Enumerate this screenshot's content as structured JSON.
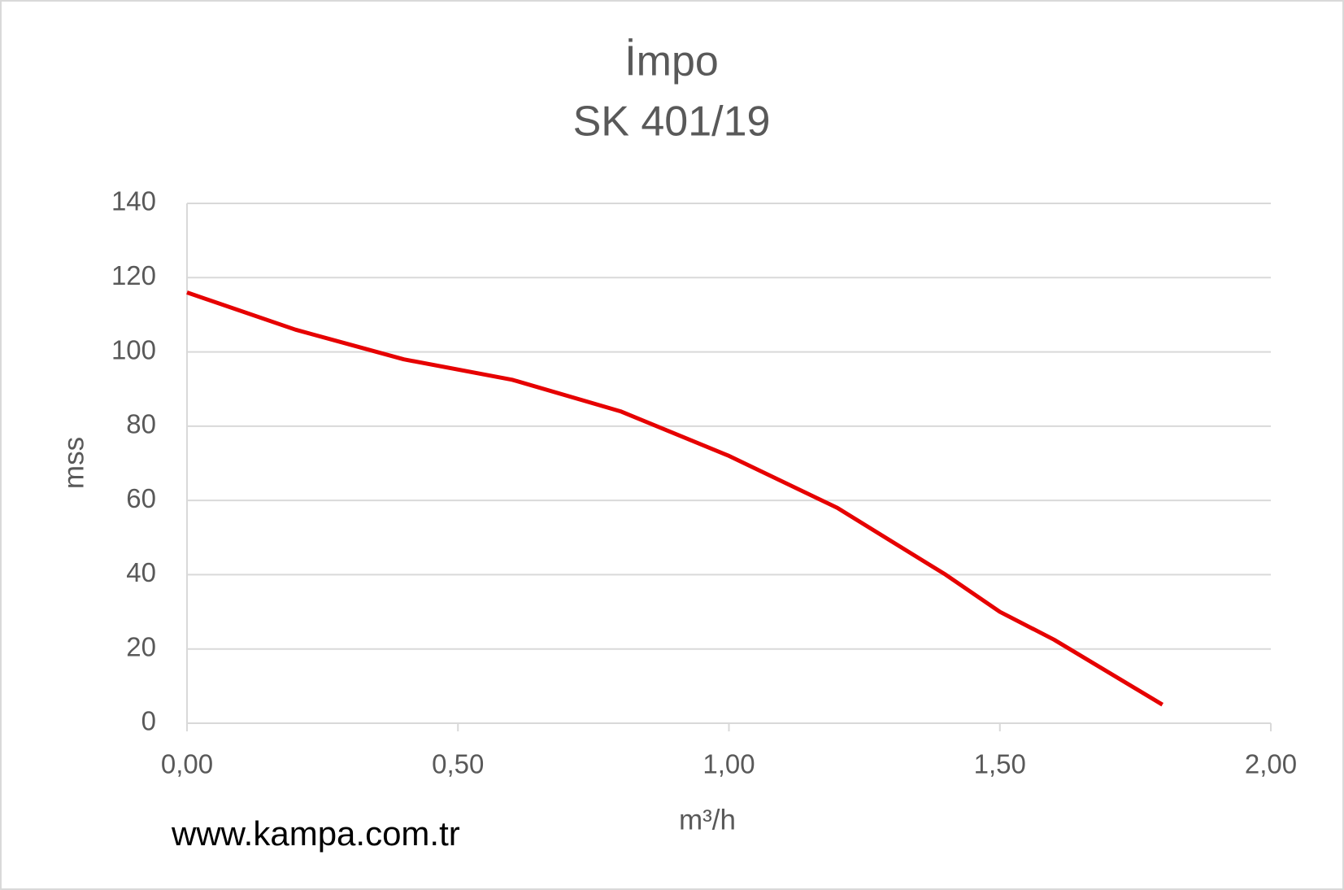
{
  "chart_data": {
    "type": "line",
    "title": "İmpo",
    "subtitle": "SK 401/19",
    "x_label": "m³/h",
    "y_label": "mss",
    "annotation": "www.kampa.com.tr",
    "x": [
      0,
      0.2,
      0.3,
      0.4,
      0.6,
      0.8,
      1.0,
      1.2,
      1.4,
      1.5,
      1.6,
      1.8
    ],
    "series": [
      {
        "name": "SK 401/19",
        "color": "#e60000",
        "values": [
          116,
          106,
          102,
          98,
          92.5,
          84,
          72,
          58,
          40,
          30,
          22.5,
          5
        ]
      }
    ],
    "xlim": [
      0,
      2
    ],
    "xticks": [
      {
        "value": 0,
        "label": "0,00"
      },
      {
        "value": 0.5,
        "label": "0,50"
      },
      {
        "value": 1,
        "label": "1,00"
      },
      {
        "value": 1.5,
        "label": "1,50"
      },
      {
        "value": 2,
        "label": "2,00"
      }
    ],
    "ylim": [
      0,
      140
    ],
    "yticks": [
      0,
      20,
      40,
      60,
      80,
      100,
      120,
      140
    ],
    "grid": true
  }
}
